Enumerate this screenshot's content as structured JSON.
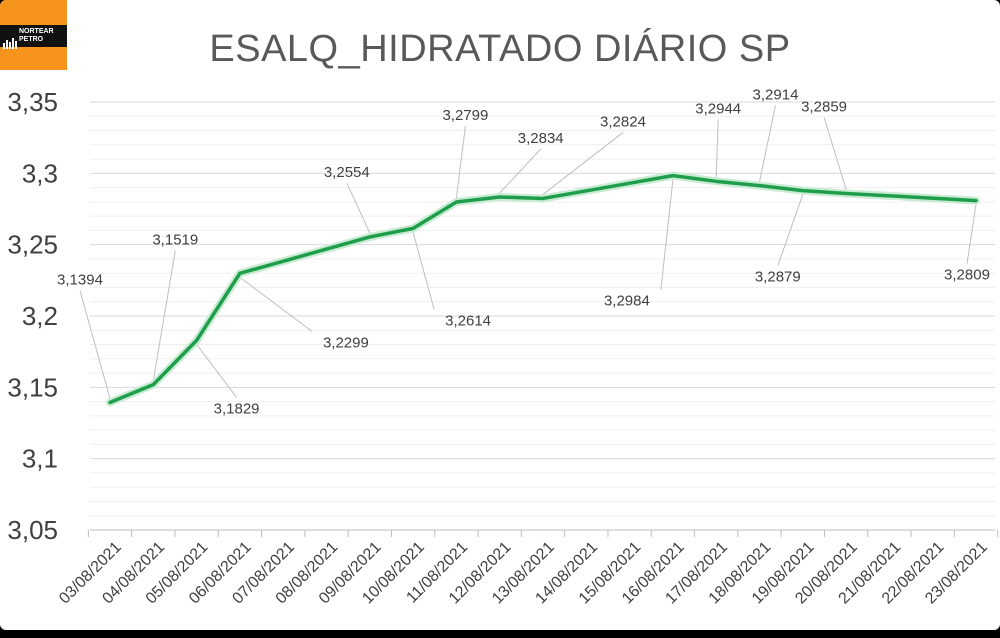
{
  "logo": {
    "line1": "NORTEAR",
    "line2": "PETRO"
  },
  "chart_data": {
    "type": "line",
    "title": "ESALQ_HIDRATADO DIÁRIO SP",
    "xlabel": "",
    "ylabel": "",
    "ylim": [
      3.05,
      3.35
    ],
    "yticks": [
      "3,05",
      "3,1",
      "3,15",
      "3,2",
      "3,25",
      "3,3",
      "3,35"
    ],
    "ytick_values": [
      3.05,
      3.1,
      3.15,
      3.2,
      3.25,
      3.3,
      3.35
    ],
    "grid": true,
    "legend": "none",
    "categories": [
      "03/08/2021",
      "04/08/2021",
      "05/08/2021",
      "06/08/2021",
      "07/08/2021",
      "08/08/2021",
      "09/08/2021",
      "10/08/2021",
      "11/08/2021",
      "12/08/2021",
      "13/08/2021",
      "14/08/2021",
      "15/08/2021",
      "16/08/2021",
      "17/08/2021",
      "18/08/2021",
      "19/08/2021",
      "20/08/2021",
      "21/08/2021",
      "22/08/2021",
      "23/08/2021"
    ],
    "series": [
      {
        "color": "#1e9e4a",
        "points": [
          {
            "x": "03/08/2021",
            "y": 3.1394,
            "label": "3,1394"
          },
          {
            "x": "04/08/2021",
            "y": 3.1519,
            "label": "3,1519"
          },
          {
            "x": "05/08/2021",
            "y": 3.1829,
            "label": "3,1829"
          },
          {
            "x": "06/08/2021",
            "y": 3.2299,
            "label": "3,2299"
          },
          {
            "x": "09/08/2021",
            "y": 3.2554,
            "label": "3,2554"
          },
          {
            "x": "10/08/2021",
            "y": 3.2614,
            "label": "3,2614"
          },
          {
            "x": "11/08/2021",
            "y": 3.2799,
            "label": "3,2799"
          },
          {
            "x": "12/08/2021",
            "y": 3.2834,
            "label": "3,2834"
          },
          {
            "x": "13/08/2021",
            "y": 3.2824,
            "label": "3,2824"
          },
          {
            "x": "16/08/2021",
            "y": 3.2984,
            "label": "3,2984"
          },
          {
            "x": "17/08/2021",
            "y": 3.2944,
            "label": "3,2944"
          },
          {
            "x": "18/08/2021",
            "y": 3.2914,
            "label": "3,2914"
          },
          {
            "x": "19/08/2021",
            "y": 3.2879,
            "label": "3,2879"
          },
          {
            "x": "20/08/2021",
            "y": 3.2859,
            "label": "3,2859"
          },
          {
            "x": "23/08/2021",
            "y": 3.2809,
            "label": "3,2809"
          }
        ]
      }
    ]
  }
}
